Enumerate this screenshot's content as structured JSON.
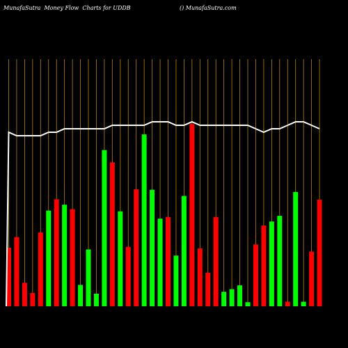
{
  "header": {
    "left": "MunafaSutra  Money Flow  Charts for UDDB",
    "right": "() MunafaSutra.com"
  },
  "colors": {
    "background": "#000000",
    "up": "#00ff00",
    "down": "#ff0000",
    "grid": "#b8860b",
    "line": "#ffffff"
  },
  "chart_data": {
    "type": "bar",
    "categories": [
      "",
      "",
      "",
      "",
      "",
      "",
      "",
      "",
      "",
      "",
      "",
      "",
      "",
      "",
      "",
      "",
      "",
      "",
      "",
      "",
      "",
      "",
      "",
      "",
      "",
      "",
      "",
      "",
      "",
      "",
      "",
      "",
      "",
      "",
      "",
      "",
      "",
      "",
      "",
      ""
    ],
    "money_flow": [
      2.47,
      2.92,
      0.99,
      0.56,
      3.12,
      4.04,
      4.52,
      4.29,
      4.1,
      0.9,
      2.4,
      0.53,
      6.6,
      6.08,
      4.01,
      2.51,
      4.94,
      7.26,
      4.92,
      3.7,
      3.77,
      2.14,
      4.66,
      7.7,
      2.44,
      1.42,
      3.77,
      0.61,
      0.72,
      0.88,
      0.17,
      2.61,
      3.41,
      3.58,
      3.82,
      0.19,
      4.83,
      0.19,
      2.31,
      4.5
    ],
    "direction": [
      "down",
      "down",
      "down",
      "down",
      "down",
      "up",
      "down",
      "up",
      "down",
      "up",
      "up",
      "up",
      "up",
      "down",
      "up",
      "down",
      "down",
      "up",
      "up",
      "up",
      "down",
      "up",
      "up",
      "down",
      "down",
      "down",
      "down",
      "up",
      "up",
      "up",
      "up",
      "down",
      "down",
      "up",
      "up",
      "down",
      "up",
      "up",
      "down",
      "down"
    ],
    "line": [
      82,
      81,
      81,
      81,
      81,
      82,
      82,
      83,
      83,
      83,
      83,
      83,
      83,
      84,
      84,
      84,
      84,
      84,
      85,
      85,
      85,
      84,
      84,
      85,
      84,
      84,
      84,
      84,
      84,
      84,
      84,
      83,
      82,
      83,
      83,
      84,
      85,
      85,
      84,
      83
    ]
  }
}
